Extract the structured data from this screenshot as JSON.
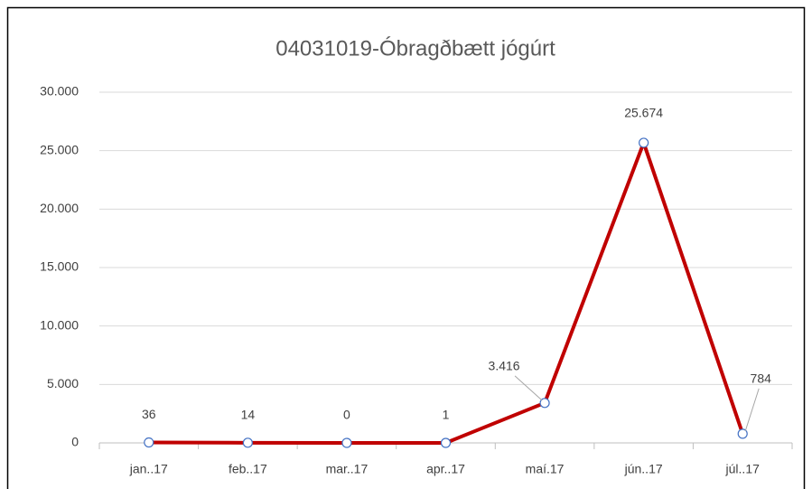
{
  "chart_data": {
    "type": "line",
    "title": "04031019-Óbragðbætt jógúrt",
    "categories": [
      "jan..17",
      "feb..17",
      "mar..17",
      "apr..17",
      "maí.17",
      "jún..17",
      "júl..17"
    ],
    "series": [
      {
        "name": "04031019-Óbragðbætt jógúrt",
        "color": "#c00000",
        "values": [
          36,
          14,
          0,
          1,
          3416,
          25674,
          784
        ],
        "value_labels": [
          "36",
          "14",
          "0",
          "1",
          "3.416",
          "25.674",
          "784"
        ]
      }
    ],
    "ylim": [
      0,
      30000
    ],
    "yticks": [
      0,
      {
        "value": 5000,
        "label": "5.000"
      },
      {
        "value": 10000,
        "label": "10.000"
      },
      {
        "value": 15000,
        "label": "15.000"
      },
      {
        "value": 20000,
        "label": "20.000"
      },
      {
        "value": 25000,
        "label": "25.000"
      },
      {
        "value": 30000,
        "label": "30.000"
      }
    ],
    "grid": true
  }
}
